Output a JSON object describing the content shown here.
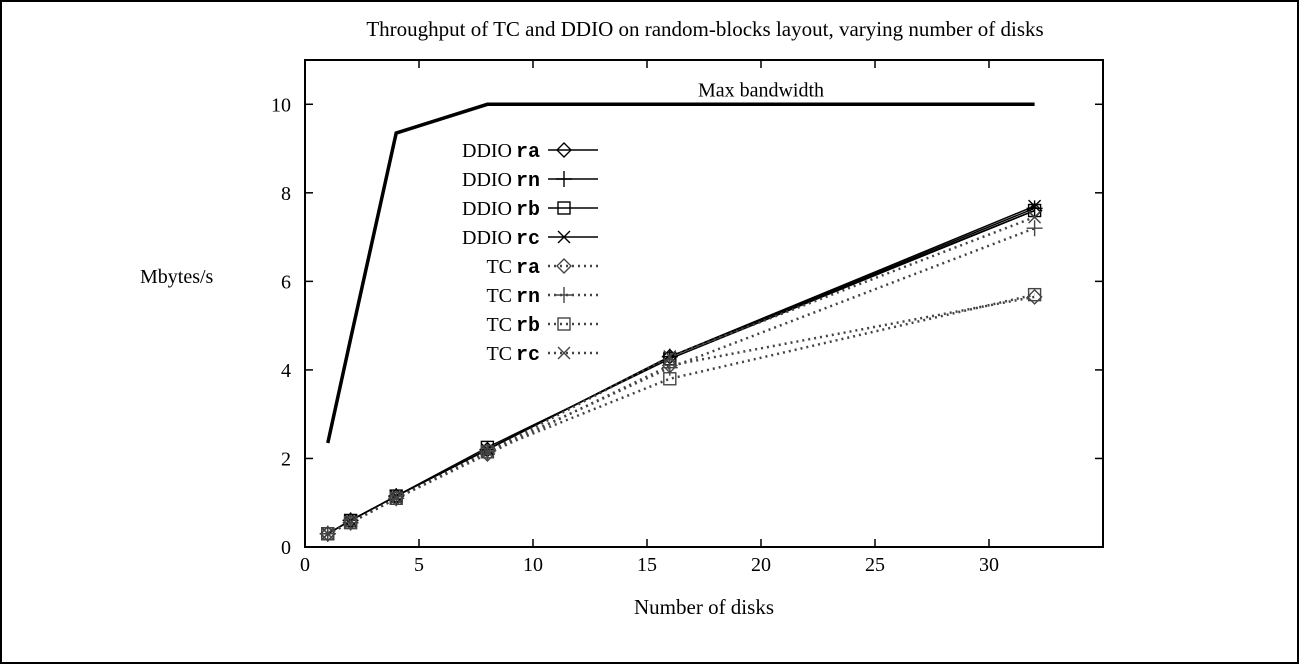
{
  "chart_data": {
    "type": "line",
    "title": "Throughput of TC and DDIO on random-blocks layout, varying number of disks",
    "xlabel": "Number of disks",
    "ylabel": "Mbytes/s",
    "xlim": [
      0,
      35
    ],
    "ylim": [
      0,
      11
    ],
    "xticks": [
      0,
      5,
      10,
      15,
      20,
      25,
      30
    ],
    "yticks": [
      0,
      2,
      4,
      6,
      8,
      10
    ],
    "grid": false,
    "legend_position": "upper-left-inside",
    "x": [
      1,
      2,
      4,
      8,
      16,
      32
    ],
    "reference": {
      "name": "Max bandwidth",
      "x": [
        1,
        2,
        4,
        8,
        32
      ],
      "values": [
        2.35,
        4.7,
        9.35,
        10.0,
        10.0
      ]
    },
    "series": [
      {
        "name": "DDIO ra",
        "prefix": "DDIO",
        "code": "ra",
        "marker": "diamond",
        "style": "solid",
        "values": [
          0.3,
          0.6,
          1.15,
          2.2,
          4.3,
          7.6
        ]
      },
      {
        "name": "DDIO rn",
        "prefix": "DDIO",
        "code": "rn",
        "marker": "plus",
        "style": "solid",
        "values": [
          0.3,
          0.6,
          1.15,
          2.2,
          4.3,
          7.65
        ]
      },
      {
        "name": "DDIO rb",
        "prefix": "DDIO",
        "code": "rb",
        "marker": "square",
        "style": "solid",
        "values": [
          0.3,
          0.6,
          1.15,
          2.25,
          4.25,
          7.6
        ]
      },
      {
        "name": "DDIO rc",
        "prefix": "DDIO",
        "code": "rc",
        "marker": "cross",
        "style": "solid",
        "values": [
          0.3,
          0.6,
          1.15,
          2.2,
          4.3,
          7.7
        ]
      },
      {
        "name": "TC ra",
        "prefix": "TC",
        "code": "ra",
        "marker": "diamond",
        "style": "dotted",
        "values": [
          0.3,
          0.55,
          1.1,
          2.1,
          4.1,
          5.65
        ]
      },
      {
        "name": "TC rn",
        "prefix": "TC",
        "code": "rn",
        "marker": "plus",
        "style": "dotted",
        "values": [
          0.3,
          0.55,
          1.1,
          2.15,
          4.05,
          7.2
        ]
      },
      {
        "name": "TC rb",
        "prefix": "TC",
        "code": "rb",
        "marker": "square",
        "style": "dotted",
        "values": [
          0.3,
          0.55,
          1.1,
          2.15,
          3.8,
          5.7
        ]
      },
      {
        "name": "TC rc",
        "prefix": "TC",
        "code": "rc",
        "marker": "cross",
        "style": "dotted",
        "values": [
          0.3,
          0.55,
          1.1,
          2.15,
          4.3,
          7.45
        ]
      }
    ]
  },
  "colors": {
    "line": "#000000",
    "dotted": "#444444",
    "background": "#ffffff"
  }
}
